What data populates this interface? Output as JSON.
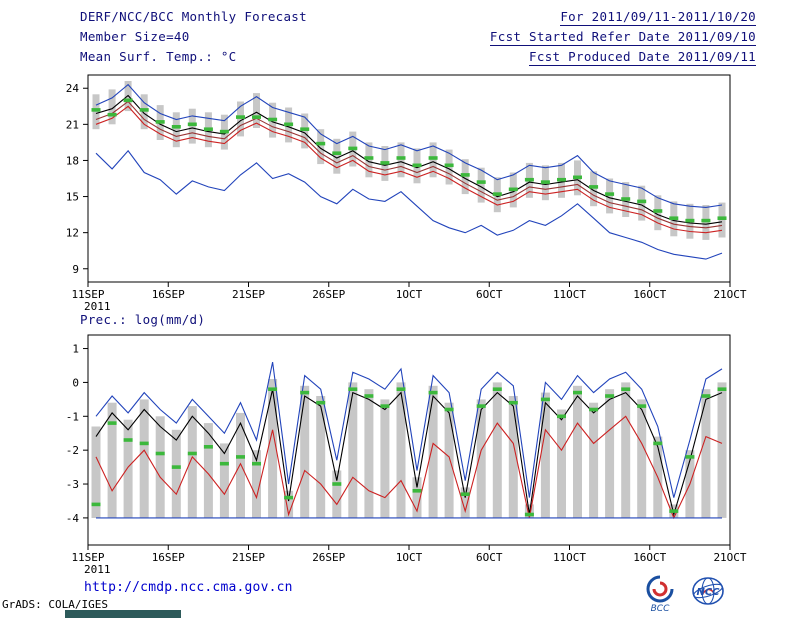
{
  "header": {
    "title": "DERF/NCC/BCC Monthly Forecast",
    "member_size": "Member Size=40",
    "variable_label": "Mean Surf. Temp.: °C",
    "for_range": "For 2011/09/11-2011/10/20",
    "refer_date": "Fcst Started Refer Date 2011/09/10",
    "produced_date": "Fcst Produced Date 2011/09/11"
  },
  "prec_label": "Prec.: log(mm/d)",
  "footer": {
    "url": "http://cmdp.ncc.cma.gov.cn",
    "credit": "GrADS: COLA/IGES",
    "logo_bcc_text": "BCC",
    "logo_ncc_text": "NCC"
  },
  "colors": {
    "header_text": "#10107a",
    "axis_text": "#000000",
    "bar_gray": "#c7c7c7",
    "dash_green": "#3cb83c",
    "line_blue": "#2244bb",
    "line_black": "#000000",
    "line_red": "#cc2222",
    "line_maroon": "#993333",
    "url_blue": "#0000cd",
    "logo_blue": "#1a4fa0",
    "logo_red": "#d03030"
  },
  "chart_data": [
    {
      "id": "temp",
      "type": "line",
      "title": "Mean Surf. Temp.: °C",
      "grid": false,
      "legend_position": "none",
      "x_tick_labels": [
        "11SEP",
        "16SEP",
        "21SEP",
        "26SEP",
        "1OCT",
        "6OCT",
        "11OCT",
        "16OCT",
        "21OCT"
      ],
      "x_year": "2011",
      "yticks": [
        9,
        12,
        15,
        18,
        21,
        24
      ],
      "ylim": [
        7.9,
        25.1
      ],
      "n_days": 40,
      "series": [
        {
          "name": "ensemble-max",
          "color": "#2244bb",
          "values": [
            22.6,
            23.2,
            24.3,
            22.8,
            21.9,
            21.4,
            21.7,
            21.5,
            21.3,
            22.5,
            23.3,
            22.4,
            22.0,
            21.6,
            20.2,
            19.4,
            20.0,
            19.2,
            18.9,
            19.3,
            18.8,
            19.2,
            18.6,
            17.8,
            17.2,
            16.4,
            16.8,
            17.6,
            17.4,
            17.6,
            18.4,
            17.0,
            16.3,
            16.0,
            15.7,
            14.9,
            14.4,
            14.2,
            14.1,
            14.3
          ]
        },
        {
          "name": "ensemble-mean",
          "color": "#000000",
          "values": [
            21.9,
            22.3,
            23.4,
            21.9,
            21.0,
            20.4,
            20.7,
            20.4,
            20.2,
            21.3,
            22.0,
            21.2,
            20.8,
            20.3,
            19.0,
            18.2,
            18.8,
            17.9,
            17.6,
            17.9,
            17.4,
            17.9,
            17.3,
            16.5,
            15.8,
            15.0,
            15.4,
            16.2,
            16.0,
            16.2,
            16.4,
            15.5,
            14.9,
            14.6,
            14.3,
            13.5,
            13.0,
            12.8,
            12.7,
            12.9
          ]
        },
        {
          "name": "control",
          "color": "#993333",
          "values": [
            21.4,
            21.9,
            22.9,
            21.4,
            20.6,
            20.0,
            20.3,
            20.0,
            19.8,
            20.9,
            21.5,
            20.8,
            20.4,
            19.9,
            18.6,
            17.8,
            18.4,
            17.5,
            17.2,
            17.5,
            17.0,
            17.5,
            16.9,
            16.1,
            15.4,
            14.7,
            15.0,
            15.8,
            15.6,
            15.8,
            16.0,
            15.1,
            14.5,
            14.2,
            13.9,
            13.2,
            12.7,
            12.5,
            12.4,
            12.6
          ]
        },
        {
          "name": "control-2",
          "color": "#cc2222",
          "values": [
            21.0,
            21.5,
            22.5,
            21.0,
            20.2,
            19.6,
            19.9,
            19.6,
            19.4,
            20.5,
            21.1,
            20.4,
            20.0,
            19.5,
            18.2,
            17.4,
            18.0,
            17.1,
            16.8,
            17.1,
            16.6,
            17.1,
            16.5,
            15.7,
            15.0,
            14.3,
            14.6,
            15.4,
            15.2,
            15.4,
            15.6,
            14.7,
            14.1,
            13.8,
            13.5,
            12.8,
            12.3,
            12.1,
            12.0,
            12.2
          ]
        },
        {
          "name": "ensemble-min",
          "color": "#2244bb",
          "values": [
            18.6,
            17.3,
            18.8,
            17.0,
            16.4,
            15.2,
            16.3,
            15.8,
            15.5,
            16.8,
            17.8,
            16.5,
            16.9,
            16.2,
            15.0,
            14.4,
            15.6,
            14.8,
            14.6,
            15.4,
            14.2,
            13.0,
            12.4,
            12.0,
            12.6,
            11.8,
            12.2,
            13.0,
            12.6,
            13.4,
            14.4,
            13.2,
            12.0,
            11.6,
            11.2,
            10.6,
            10.2,
            10.0,
            9.8,
            10.3
          ]
        }
      ],
      "bars": {
        "name": "ensemble-spread",
        "color": "#c7c7c7",
        "low": [
          20.6,
          21.0,
          22.1,
          20.6,
          19.7,
          19.1,
          19.4,
          19.1,
          18.9,
          20.0,
          20.7,
          19.9,
          19.5,
          19.0,
          17.7,
          16.9,
          17.5,
          16.6,
          16.3,
          16.6,
          16.1,
          16.6,
          16.0,
          15.2,
          14.5,
          13.7,
          14.1,
          14.9,
          14.7,
          14.9,
          15.1,
          14.2,
          13.6,
          13.3,
          13.0,
          12.2,
          11.7,
          11.5,
          11.4,
          11.6
        ],
        "high": [
          23.5,
          23.9,
          24.6,
          23.5,
          22.6,
          22.0,
          22.3,
          22.0,
          21.8,
          22.9,
          23.6,
          22.8,
          22.4,
          21.9,
          20.6,
          19.8,
          20.4,
          19.5,
          19.2,
          19.5,
          19.0,
          19.5,
          18.9,
          18.1,
          17.4,
          16.6,
          17.0,
          17.8,
          17.6,
          17.8,
          18.0,
          17.1,
          16.5,
          16.2,
          15.9,
          15.1,
          14.6,
          14.4,
          14.3,
          14.5
        ]
      },
      "dashes": {
        "name": "median-marks",
        "color": "#3cb83c",
        "values": [
          22.2,
          21.8,
          23.0,
          22.2,
          21.2,
          20.8,
          21.0,
          20.6,
          20.4,
          21.6,
          21.6,
          21.4,
          21.0,
          20.6,
          19.4,
          18.6,
          19.0,
          18.2,
          17.8,
          18.2,
          17.6,
          18.2,
          17.6,
          16.8,
          16.2,
          15.2,
          15.6,
          16.4,
          16.2,
          16.4,
          16.6,
          15.8,
          15.2,
          14.8,
          14.6,
          13.8,
          13.2,
          13.0,
          13.0,
          13.2
        ]
      }
    },
    {
      "id": "prec",
      "type": "line",
      "title": "Prec.: log(mm/d)",
      "grid": false,
      "legend_position": "none",
      "x_tick_labels": [
        "11SEP",
        "16SEP",
        "21SEP",
        "26SEP",
        "1OCT",
        "6OCT",
        "11OCT",
        "16OCT",
        "21OCT"
      ],
      "x_year": "2011",
      "yticks": [
        -4,
        -3,
        -2,
        -1,
        0,
        1
      ],
      "ylim": [
        -4.8,
        1.4
      ],
      "n_days": 40,
      "series": [
        {
          "name": "ensemble-max",
          "color": "#2244bb",
          "values": [
            -1.0,
            -0.4,
            -0.9,
            -0.3,
            -0.8,
            -1.2,
            -0.5,
            -1.0,
            -1.5,
            -0.6,
            -1.7,
            0.6,
            -3.0,
            0.2,
            -0.2,
            -2.3,
            0.3,
            0.1,
            -0.2,
            0.4,
            -2.6,
            0.2,
            -0.3,
            -2.9,
            -0.2,
            0.3,
            -0.1,
            -3.4,
            0.0,
            -0.5,
            0.2,
            -0.3,
            0.1,
            0.3,
            -0.2,
            -1.3,
            -3.4,
            -1.7,
            0.1,
            0.4
          ]
        },
        {
          "name": "ensemble-mean",
          "color": "#000000",
          "values": [
            -1.6,
            -0.9,
            -1.4,
            -0.8,
            -1.3,
            -1.7,
            -1.0,
            -1.5,
            -2.1,
            -1.2,
            -2.3,
            -0.2,
            -3.5,
            -0.4,
            -0.7,
            -2.9,
            -0.3,
            -0.5,
            -0.8,
            -0.3,
            -3.1,
            -0.4,
            -0.9,
            -3.4,
            -0.8,
            -0.3,
            -0.7,
            -3.9,
            -0.6,
            -1.1,
            -0.4,
            -0.9,
            -0.5,
            -0.3,
            -0.8,
            -1.9,
            -3.9,
            -2.3,
            -0.5,
            -0.3
          ]
        },
        {
          "name": "control",
          "color": "#cc2222",
          "values": [
            -2.2,
            -3.2,
            -2.5,
            -2.0,
            -2.8,
            -3.3,
            -2.2,
            -2.7,
            -3.3,
            -2.4,
            -3.4,
            -1.4,
            -3.9,
            -2.6,
            -3.0,
            -3.6,
            -2.8,
            -3.2,
            -3.4,
            -2.9,
            -3.8,
            -1.8,
            -2.2,
            -3.8,
            -2.0,
            -1.2,
            -1.8,
            -4.0,
            -1.4,
            -2.0,
            -1.2,
            -1.8,
            -1.4,
            -1.0,
            -1.8,
            -2.8,
            -4.0,
            -3.0,
            -1.6,
            -1.8
          ]
        },
        {
          "name": "ensemble-min",
          "color": "#2244bb",
          "values": [
            -4.0,
            -4.0,
            -4.0,
            -4.0,
            -4.0,
            -4.0,
            -4.0,
            -4.0,
            -4.0,
            -4.0,
            -4.0,
            -4.0,
            -4.0,
            -4.0,
            -4.0,
            -4.0,
            -4.0,
            -4.0,
            -4.0,
            -4.0,
            -4.0,
            -4.0,
            -4.0,
            -4.0,
            -4.0,
            -4.0,
            -4.0,
            -4.0,
            -4.0,
            -4.0,
            -4.0,
            -4.0,
            -4.0,
            -4.0,
            -4.0,
            -4.0,
            -4.0,
            -4.0,
            -4.0,
            -4.0
          ]
        }
      ],
      "bars": {
        "name": "ensemble-spread",
        "color": "#c7c7c7",
        "low": -4,
        "high": [
          -1.3,
          -0.6,
          -1.1,
          -0.5,
          -1.0,
          -1.4,
          -0.7,
          -1.2,
          -1.8,
          -0.9,
          -2.0,
          0.1,
          -3.2,
          -0.1,
          -0.4,
          -2.6,
          0.0,
          -0.2,
          -0.5,
          0.0,
          -2.8,
          -0.1,
          -0.6,
          -3.1,
          -0.5,
          0.0,
          -0.4,
          -3.6,
          -0.3,
          -0.8,
          -0.1,
          -0.6,
          -0.2,
          0.0,
          -0.5,
          -1.6,
          -3.6,
          -2.0,
          -0.2,
          0.0
        ]
      },
      "dashes": {
        "name": "median-marks",
        "color": "#3cb83c",
        "values": [
          -3.6,
          -1.2,
          -1.7,
          -1.8,
          -2.1,
          -2.5,
          -2.1,
          -1.9,
          -2.4,
          -2.2,
          -2.4,
          -0.2,
          -3.4,
          -0.3,
          -0.6,
          -3.0,
          -0.2,
          -0.4,
          -0.7,
          -0.2,
          -3.2,
          -0.3,
          -0.8,
          -3.3,
          -0.7,
          -0.2,
          -0.6,
          -3.9,
          -0.5,
          -1.0,
          -0.3,
          -0.8,
          -0.4,
          -0.2,
          -0.7,
          -1.8,
          -3.8,
          -2.2,
          -0.4,
          -0.2
        ]
      }
    }
  ]
}
